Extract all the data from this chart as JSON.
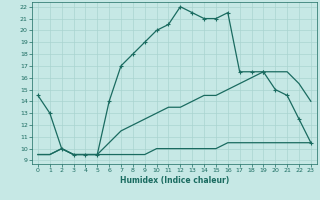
{
  "xlabel": "Humidex (Indice chaleur)",
  "xlim": [
    -0.5,
    23.5
  ],
  "ylim": [
    8.7,
    22.4
  ],
  "xticks": [
    0,
    1,
    2,
    3,
    4,
    5,
    6,
    7,
    8,
    9,
    10,
    11,
    12,
    13,
    14,
    15,
    16,
    17,
    18,
    19,
    20,
    21,
    22,
    23
  ],
  "yticks": [
    9,
    10,
    11,
    12,
    13,
    14,
    15,
    16,
    17,
    18,
    19,
    20,
    21,
    22
  ],
  "background_color": "#c6e8e5",
  "grid_color": "#aad4d0",
  "line_color": "#1a6b60",
  "line1_x": [
    0,
    1,
    2,
    3,
    4,
    5,
    6,
    7,
    8,
    9,
    10,
    11,
    12,
    13,
    14,
    15,
    16,
    17,
    18,
    19
  ],
  "line1_y": [
    14.5,
    13.0,
    10.0,
    9.5,
    9.5,
    9.5,
    14.0,
    17.0,
    18.0,
    19.0,
    20.0,
    20.5,
    22.0,
    21.5,
    21.0,
    21.0,
    21.5,
    16.5,
    16.5,
    16.5
  ],
  "line2_x": [
    19,
    20,
    21,
    22,
    23
  ],
  "line2_y": [
    16.5,
    15.0,
    14.5,
    12.5,
    10.5
  ],
  "line3_x": [
    0,
    1,
    2,
    3,
    4,
    5,
    6,
    7,
    8,
    9,
    10,
    11,
    12,
    13,
    14,
    15,
    16,
    17,
    18,
    19,
    20,
    21,
    22,
    23
  ],
  "line3_y": [
    9.5,
    9.5,
    10.0,
    9.5,
    9.5,
    9.5,
    10.5,
    11.5,
    12.0,
    12.5,
    13.0,
    13.5,
    13.5,
    14.0,
    14.5,
    14.5,
    15.0,
    15.5,
    16.0,
    16.5,
    16.5,
    16.5,
    15.5,
    14.0
  ],
  "line4_x": [
    0,
    1,
    2,
    3,
    4,
    5,
    6,
    7,
    8,
    9,
    10,
    11,
    12,
    13,
    14,
    15,
    16,
    17,
    18,
    19,
    20,
    21,
    22,
    23
  ],
  "line4_y": [
    9.5,
    9.5,
    10.0,
    9.5,
    9.5,
    9.5,
    9.5,
    9.5,
    9.5,
    9.5,
    10.0,
    10.0,
    10.0,
    10.0,
    10.0,
    10.0,
    10.5,
    10.5,
    10.5,
    10.5,
    10.5,
    10.5,
    10.5,
    10.5
  ]
}
